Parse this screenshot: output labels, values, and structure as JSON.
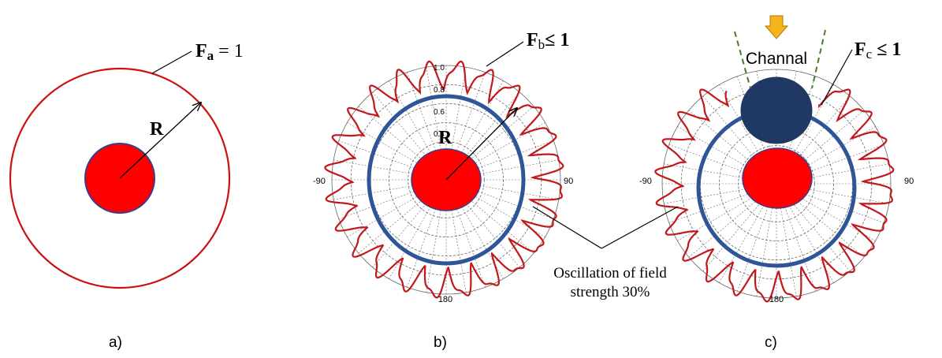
{
  "panel_a": {
    "caption": "a)",
    "field_symbol": "F",
    "field_subscript": "a",
    "field_relation": " = 1",
    "radius_label": "R"
  },
  "panel_b": {
    "caption": "b)",
    "field_symbol": "F",
    "field_subscript": "b",
    "field_relation": "≤ 1",
    "radius_label": "R",
    "tick_labels": [
      "1.0",
      "0.8",
      "0.6",
      "0.4"
    ],
    "angle_left": "-90",
    "angle_right": "90",
    "angle_bottom": "180"
  },
  "panel_c": {
    "caption": "c)",
    "field_symbol": "F",
    "field_subscript": "c",
    "field_relation": " ≤ 1",
    "channel_label": "Channal",
    "angle_left": "-90",
    "angle_right": "90",
    "angle_bottom": "180"
  },
  "annotation": {
    "line1": "Oscillation of field",
    "line2": "strength 30%"
  },
  "colors": {
    "core_red": "#ff0000",
    "core_outline": "#3b3b8a",
    "field_ring_red": "#cc1111",
    "wave_red": "#c0181c",
    "ring_blue": "#2e5597",
    "channel_ball": "#1f3864",
    "arrow_orange": "#f5b41a",
    "dash_green": "#4a7a2a",
    "grid_gray": "#666666"
  }
}
